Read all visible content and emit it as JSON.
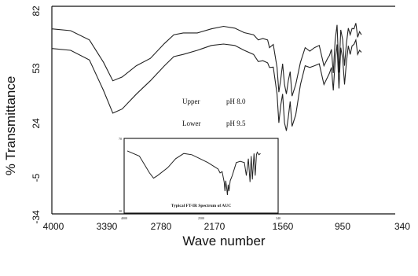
{
  "chart_data": [
    {
      "type": "line",
      "xlabel": "Wave number",
      "ylabel": "% Transmittance",
      "xlim": [
        4000,
        340
      ],
      "ylim": [
        -34,
        82
      ],
      "x_ticks": [
        "4000",
        "3390",
        "2780",
        "2170",
        "1560",
        "950",
        "340"
      ],
      "y_ticks": [
        "82",
        "53",
        "24",
        "-5",
        "-34"
      ],
      "grid": false,
      "annotations": [
        {
          "label": "Upper",
          "value": "pH 8.0"
        },
        {
          "label": "Lower",
          "value": "pH 9.5"
        }
      ],
      "series": [
        {
          "x": [
            4000,
            3800,
            3600,
            3450,
            3350,
            3250,
            3100,
            2950,
            2800,
            2700,
            2600,
            2450,
            2300,
            2170,
            2050,
            1950,
            1850,
            1800,
            1750,
            1700,
            1680,
            1640,
            1600,
            1580,
            1560,
            1540,
            1520,
            1500,
            1480,
            1460,
            1440,
            1400,
            1350,
            1300,
            1250,
            1200,
            1150,
            1100,
            1060,
            1040,
            1020,
            1000,
            980,
            960,
            940,
            920,
            900,
            880,
            860,
            840,
            820,
            800,
            780,
            760,
            740,
            720,
            700
          ],
          "y": [
            69.4,
            68.4,
            63.2,
            50.7,
            40.4,
            42.5,
            48.8,
            52.9,
            61.2,
            66.1,
            67.1,
            67.1,
            69.4,
            70.8,
            69.8,
            67.3,
            66.1,
            63.2,
            64.0,
            63.2,
            58.9,
            60.7,
            47.8,
            34.0,
            41.2,
            49.9,
            38.3,
            33.0,
            40.4,
            45.5,
            31.8,
            38.3,
            50.7,
            58.9,
            56.9,
            58.9,
            60.1,
            48.8,
            52.9,
            54.6,
            57.9,
            44.7,
            63.4,
            71.6,
            44.9,
            68.8,
            63.4,
            48.8,
            61.2,
            69.8,
            66.1,
            69.6,
            69.4,
            72.6,
            64.7,
            67.8,
            66.1
          ]
        },
        {
          "x": [
            4000,
            3800,
            3600,
            3450,
            3350,
            3250,
            3100,
            2950,
            2800,
            2700,
            2600,
            2450,
            2300,
            2170,
            2050,
            1950,
            1850,
            1800,
            1750,
            1700,
            1680,
            1640,
            1600,
            1580,
            1560,
            1540,
            1520,
            1500,
            1480,
            1460,
            1440,
            1400,
            1350,
            1300,
            1250,
            1200,
            1150,
            1100,
            1060,
            1040,
            1020,
            1000,
            980,
            960,
            940,
            920,
            900,
            880,
            860,
            840,
            820,
            800,
            780,
            760,
            740,
            720,
            700
          ],
          "y": [
            58.4,
            57.4,
            52.0,
            35.0,
            22.3,
            24.6,
            32.9,
            40.4,
            48.8,
            53.9,
            55.1,
            57.4,
            60.1,
            60.9,
            60.1,
            57.4,
            55.1,
            51.1,
            51.6,
            50.4,
            47.8,
            48.0,
            33.0,
            16.9,
            26.7,
            33.0,
            16.9,
            12.4,
            19.9,
            28.8,
            14.9,
            21.3,
            38.3,
            48.8,
            47.8,
            48.8,
            49.9,
            38.3,
            42.5,
            44.7,
            47.8,
            35.0,
            51.6,
            60.7,
            36.1,
            58.9,
            52.9,
            38.3,
            50.7,
            59.9,
            55.1,
            59.9,
            60.7,
            63.2,
            55.1,
            57.4,
            56.3
          ]
        }
      ]
    },
    {
      "type": "line",
      "title": "Typical FT-IR Spectrum of AUC",
      "x_ticks": [
        "4000",
        "2500",
        "340"
      ],
      "y_ticks": [
        "70",
        "30"
      ],
      "series": [
        {
          "x": [
            4000,
            3700,
            3450,
            3350,
            3250,
            3000,
            2800,
            2600,
            2400,
            2200,
            2000,
            1850,
            1750,
            1700,
            1650,
            1600,
            1580,
            1560,
            1540,
            1520,
            1500,
            1480,
            1450,
            1400,
            1300,
            1200,
            1100,
            1050,
            1000,
            960,
            930,
            900,
            860,
            830,
            800,
            780,
            740,
            700
          ],
          "y": [
            64,
            60,
            47,
            43,
            45,
            51,
            58,
            62,
            61,
            58,
            55,
            52,
            50,
            47,
            48,
            40,
            33,
            41,
            36,
            30,
            38,
            33,
            41,
            45,
            55,
            56,
            55,
            45,
            58,
            40,
            60,
            42,
            62,
            45,
            61,
            63,
            61,
            62
          ]
        }
      ]
    }
  ]
}
